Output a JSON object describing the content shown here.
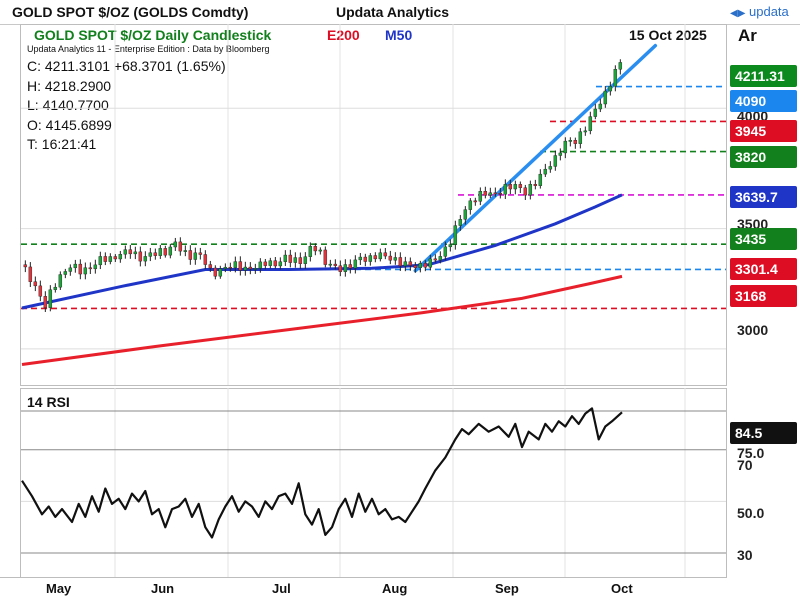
{
  "header": {
    "instrument": "GOLD SPOT $/OZ (GOLDS Comdty)",
    "publisher": "Updata Analytics",
    "logo_text": "updata",
    "logo_icon": "updata-arrows-icon"
  },
  "chart_header": {
    "title": "GOLD SPOT $/OZ Daily Candlestick",
    "ema_label": "E200",
    "ma_label": "M50",
    "date": "15 Oct 2025",
    "axis_mode": "Ar",
    "attribution": "Updata Analytics 11 - Enterprise Edition : Data by Bloomberg"
  },
  "ohlc": {
    "close": "C: 4211.3101 +68.3701 (1.65%)",
    "high": "H: 4218.2900",
    "low": "L: 4140.7700",
    "open": "O: 4145.6899",
    "time": "T: 16:21:41"
  },
  "colors": {
    "price_tag": "#0d8a1e",
    "level_blue": "#1a86ee",
    "level_red": "#dd0d24",
    "level_green": "#12801c",
    "ma50": "#1f35c8",
    "ema200": "#e8202c",
    "level_magenta": "#d914d6",
    "ma_tag": "#1f35c8",
    "ema_tag": "#dd0d24",
    "trendline": "#2a8ef0",
    "rsi_line": "#111111"
  },
  "price_tags": {
    "last": "4211.31",
    "l4090": "4090",
    "l3945": "3945",
    "l3820": "3820",
    "ma50": "3639.7",
    "l3435": "3435",
    "ema200": "3301.4",
    "l3168": "3168"
  },
  "rsi": {
    "title": "14 RSI",
    "value_tag": "84.5",
    "ticks": [
      "75.0",
      "70",
      "50.0",
      "30"
    ]
  },
  "chart_data": {
    "type": "candlestick",
    "title": "GOLD SPOT $/OZ Daily Candlestick",
    "x_months": [
      "May",
      "Jun",
      "Jul",
      "Aug",
      "Sep",
      "Oct"
    ],
    "y_ticks": [
      3000,
      3500,
      4000
    ],
    "ylim": [
      2850,
      4350
    ],
    "grid": true,
    "price_points": [
      [
        0,
        3350
      ],
      [
        3,
        3280
      ],
      [
        5,
        3230
      ],
      [
        7,
        3180
      ],
      [
        9,
        3250
      ],
      [
        12,
        3310
      ],
      [
        15,
        3350
      ],
      [
        18,
        3320
      ],
      [
        21,
        3340
      ],
      [
        24,
        3380
      ],
      [
        27,
        3370
      ],
      [
        30,
        3400
      ],
      [
        33,
        3410
      ],
      [
        35,
        3370
      ],
      [
        38,
        3390
      ],
      [
        41,
        3405
      ],
      [
        43,
        3400
      ],
      [
        46,
        3440
      ],
      [
        48,
        3410
      ],
      [
        50,
        3380
      ],
      [
        53,
        3400
      ],
      [
        55,
        3360
      ],
      [
        57,
        3310
      ],
      [
        59,
        3320
      ],
      [
        61,
        3340
      ],
      [
        64,
        3350
      ],
      [
        67,
        3330
      ],
      [
        70,
        3340
      ],
      [
        73,
        3360
      ],
      [
        76,
        3350
      ],
      [
        79,
        3380
      ],
      [
        81,
        3370
      ],
      [
        84,
        3360
      ],
      [
        87,
        3430
      ],
      [
        89,
        3410
      ],
      [
        91,
        3360
      ],
      [
        94,
        3340
      ],
      [
        96,
        3330
      ],
      [
        99,
        3350
      ],
      [
        101,
        3380
      ],
      [
        104,
        3370
      ],
      [
        107,
        3395
      ],
      [
        110,
        3380
      ],
      [
        113,
        3360
      ],
      [
        116,
        3350
      ],
      [
        119,
        3340
      ],
      [
        122,
        3360
      ],
      [
        125,
        3380
      ],
      [
        128,
        3430
      ],
      [
        130,
        3500
      ],
      [
        132,
        3560
      ],
      [
        134,
        3600
      ],
      [
        137,
        3640
      ],
      [
        140,
        3650
      ],
      [
        142,
        3640
      ],
      [
        145,
        3670
      ],
      [
        148,
        3680
      ],
      [
        151,
        3650
      ],
      [
        154,
        3690
      ],
      [
        156,
        3730
      ],
      [
        158,
        3760
      ],
      [
        160,
        3790
      ],
      [
        162,
        3840
      ],
      [
        164,
        3870
      ],
      [
        166,
        3860
      ],
      [
        168,
        3900
      ],
      [
        170,
        3940
      ],
      [
        172,
        4000
      ],
      [
        174,
        4030
      ],
      [
        176,
        4090
      ],
      [
        178,
        4150
      ],
      [
        180,
        4211.31
      ]
    ],
    "ma50": [
      [
        0,
        3170
      ],
      [
        30,
        3260
      ],
      [
        55,
        3330
      ],
      [
        80,
        3330
      ],
      [
        105,
        3335
      ],
      [
        122,
        3350
      ],
      [
        142,
        3430
      ],
      [
        160,
        3520
      ],
      [
        172,
        3590
      ],
      [
        180,
        3639.7
      ]
    ],
    "ema200": [
      [
        0,
        2935
      ],
      [
        40,
        3010
      ],
      [
        80,
        3080
      ],
      [
        120,
        3150
      ],
      [
        150,
        3210
      ],
      [
        170,
        3270
      ],
      [
        180,
        3301.4
      ]
    ],
    "levels": [
      {
        "value": 4090,
        "color": "blue"
      },
      {
        "value": 3945,
        "color": "red"
      },
      {
        "value": 3820,
        "color": "green"
      },
      {
        "value": 3639.7,
        "color": "magenta"
      },
      {
        "value": 3435,
        "color": "green"
      },
      {
        "value": 3330,
        "color": "blue"
      },
      {
        "value": 3168,
        "color": "red"
      }
    ],
    "trendline": [
      [
        118,
        3325
      ],
      [
        190,
        4260
      ]
    ],
    "rsi_series": [
      [
        0,
        58
      ],
      [
        3,
        52
      ],
      [
        6,
        45
      ],
      [
        8,
        48
      ],
      [
        10,
        44
      ],
      [
        12,
        47
      ],
      [
        15,
        42
      ],
      [
        17,
        49
      ],
      [
        19,
        44
      ],
      [
        21,
        52
      ],
      [
        23,
        46
      ],
      [
        25,
        55
      ],
      [
        27,
        49
      ],
      [
        29,
        51
      ],
      [
        31,
        47
      ],
      [
        33,
        53
      ],
      [
        35,
        50
      ],
      [
        37,
        54
      ],
      [
        39,
        45
      ],
      [
        41,
        47
      ],
      [
        43,
        40
      ],
      [
        45,
        47
      ],
      [
        47,
        48
      ],
      [
        49,
        51
      ],
      [
        51,
        44
      ],
      [
        53,
        49
      ],
      [
        55,
        40
      ],
      [
        57,
        36
      ],
      [
        59,
        43
      ],
      [
        61,
        48
      ],
      [
        63,
        52
      ],
      [
        65,
        46
      ],
      [
        67,
        50
      ],
      [
        69,
        48
      ],
      [
        71,
        44
      ],
      [
        73,
        50
      ],
      [
        75,
        47
      ],
      [
        77,
        52
      ],
      [
        79,
        53
      ],
      [
        81,
        49
      ],
      [
        83,
        57
      ],
      [
        85,
        45
      ],
      [
        87,
        41
      ],
      [
        89,
        47
      ],
      [
        91,
        37
      ],
      [
        93,
        40
      ],
      [
        95,
        47
      ],
      [
        97,
        51
      ],
      [
        99,
        44
      ],
      [
        101,
        53
      ],
      [
        103,
        46
      ],
      [
        105,
        51
      ],
      [
        107,
        45
      ],
      [
        109,
        47
      ],
      [
        111,
        43
      ],
      [
        113,
        44
      ],
      [
        115,
        42
      ],
      [
        117,
        46
      ],
      [
        119,
        50
      ],
      [
        121,
        55
      ],
      [
        124,
        62
      ],
      [
        127,
        67
      ],
      [
        130,
        74
      ],
      [
        132,
        78
      ],
      [
        134,
        76
      ],
      [
        137,
        80
      ],
      [
        140,
        77
      ],
      [
        143,
        79
      ],
      [
        146,
        75
      ],
      [
        148,
        80
      ],
      [
        150,
        71
      ],
      [
        152,
        77
      ],
      [
        155,
        74
      ],
      [
        157,
        80
      ],
      [
        159,
        77
      ],
      [
        161,
        81
      ],
      [
        163,
        79
      ],
      [
        165,
        83
      ],
      [
        167,
        80
      ],
      [
        169,
        84
      ],
      [
        171,
        86
      ],
      [
        173,
        74
      ],
      [
        175,
        79
      ],
      [
        177,
        81
      ],
      [
        180,
        84.5
      ]
    ]
  }
}
